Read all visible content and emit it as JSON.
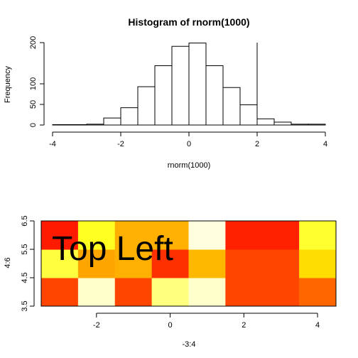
{
  "chart_data": [
    {
      "type": "bar",
      "title": "Histogram of rnorm(1000)",
      "xlabel": "rnorm(1000)",
      "ylabel": "Frequency",
      "bin_edges": [
        -4,
        -3.5,
        -3,
        -2.5,
        -2,
        -1.5,
        -1,
        -0.5,
        0,
        0.5,
        1,
        1.5,
        2,
        2.5,
        3,
        3.5,
        4
      ],
      "values": [
        1,
        1,
        2,
        17,
        42,
        93,
        144,
        191,
        199,
        144,
        91,
        49,
        15,
        7,
        2,
        2
      ],
      "xlim": [
        -4,
        4
      ],
      "ylim": [
        0,
        200
      ],
      "x_ticks": [
        "-4",
        "-2",
        "0",
        "2",
        "4"
      ],
      "y_ticks": [
        "0",
        "50",
        "100",
        "200"
      ],
      "y_tick_values": [
        0,
        50,
        100,
        200
      ],
      "vline_at": 2
    },
    {
      "type": "heatmap",
      "title": "",
      "xlabel": "-3:4",
      "ylabel": "4:6",
      "x": [
        -3,
        -2,
        -1,
        0,
        1,
        2,
        3,
        4
      ],
      "y": [
        4,
        5,
        6
      ],
      "rows": [
        [
          "#FF4500",
          "#FFFFCC",
          "#FF4500",
          "#FFFF80",
          "#FFFFCC",
          "#FF4500",
          "#FF4500",
          "#FF6600"
        ],
        [
          "#FFFF40",
          "#FFA500",
          "#FFB000",
          "#FF3000",
          "#FFB800",
          "#FF4500",
          "#FF4500",
          "#FFDD00"
        ],
        [
          "#FF1A00",
          "#FFFF20",
          "#FFB000",
          "#FFB000",
          "#FFFFDD",
          "#FF2000",
          "#FF2000",
          "#FFFF30"
        ]
      ],
      "xlim": [
        -3.5,
        4.5
      ],
      "ylim": [
        3.5,
        6.5
      ],
      "x_ticks": [
        "-2",
        "0",
        "2",
        "4"
      ],
      "y_ticks": [
        "3.5",
        "4.5",
        "5.5",
        "6.5"
      ],
      "annotation": "Top Left"
    }
  ]
}
